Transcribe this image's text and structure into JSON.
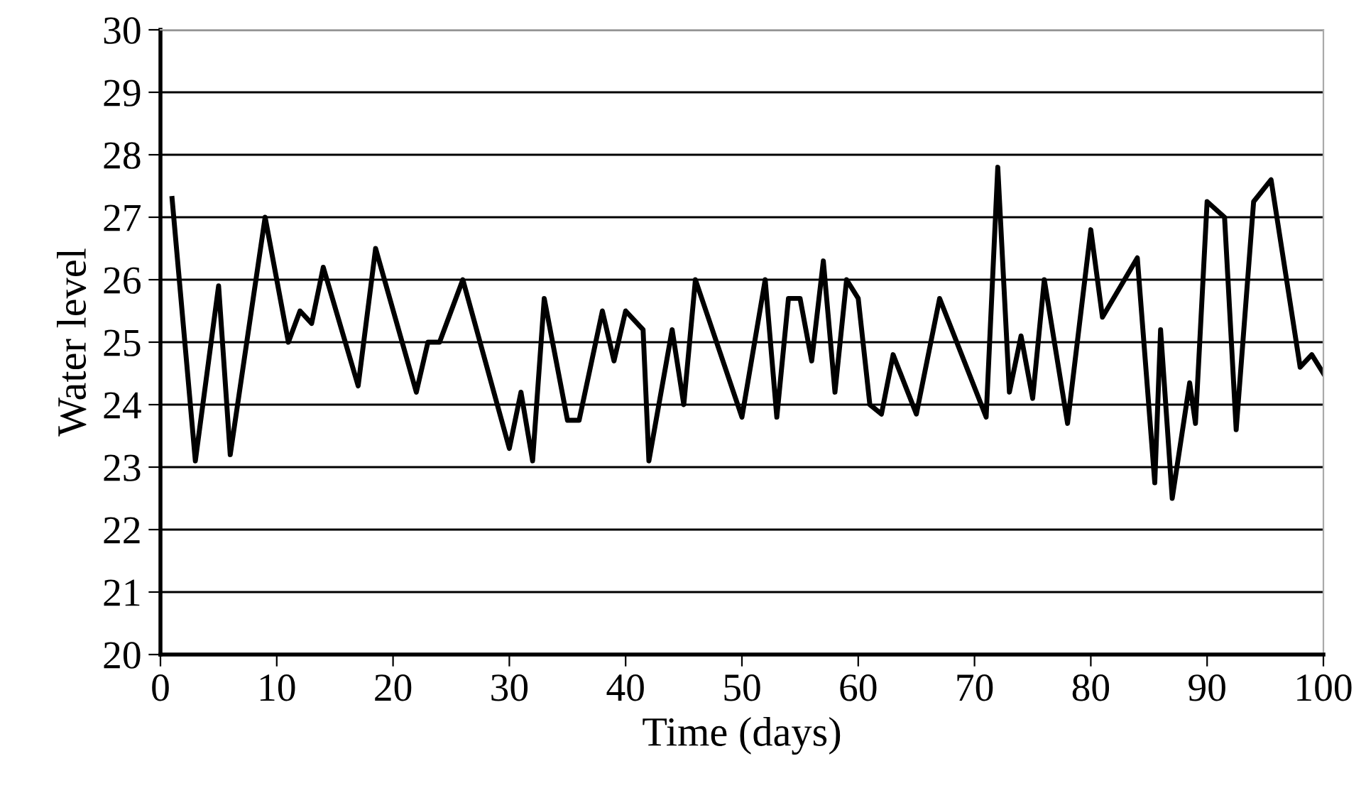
{
  "chart_data": {
    "type": "line",
    "xlabel": "Time (days)",
    "ylabel": "Water level",
    "xlim": [
      0,
      100
    ],
    "xticks": [
      0,
      10,
      20,
      30,
      40,
      50,
      60,
      70,
      80,
      90,
      100
    ],
    "ylim": [
      20,
      30
    ],
    "yticks": [
      20,
      21,
      22,
      23,
      24,
      25,
      26,
      27,
      28,
      29,
      30
    ],
    "grid": "y",
    "marker": "none",
    "line_style": "solid",
    "series": [
      {
        "color": "#000000",
        "x": [
          1,
          3,
          5,
          6,
          9,
          11,
          12,
          13,
          14,
          17,
          18.5,
          22,
          23,
          24,
          26,
          30,
          31,
          32,
          33,
          35,
          36,
          38,
          39,
          40,
          41.5,
          42,
          44,
          45,
          46,
          50,
          52,
          53,
          54,
          55,
          56,
          57,
          58,
          59,
          60,
          61,
          62,
          63,
          65,
          67,
          71,
          72,
          73,
          74,
          75,
          76,
          78,
          80,
          81,
          84,
          85.5,
          86,
          87,
          88.5,
          89,
          90,
          91.5,
          92.5,
          94,
          95.5,
          98,
          99,
          100
        ],
        "values": [
          27.3,
          23.1,
          25.9,
          23.2,
          27.0,
          25.0,
          25.5,
          25.3,
          26.2,
          24.3,
          26.5,
          24.2,
          25.0,
          25.0,
          26.0,
          23.3,
          24.2,
          23.1,
          25.7,
          23.75,
          23.75,
          25.5,
          24.7,
          25.5,
          25.2,
          23.1,
          25.2,
          24.0,
          26.0,
          23.8,
          26.0,
          23.8,
          25.7,
          25.7,
          24.7,
          26.3,
          24.2,
          26.0,
          25.7,
          24.0,
          23.85,
          24.8,
          23.85,
          25.7,
          23.8,
          27.8,
          24.2,
          25.1,
          24.1,
          26.0,
          23.7,
          26.8,
          25.4,
          26.35,
          22.75,
          25.2,
          22.5,
          24.35,
          23.7,
          27.25,
          27.0,
          23.6,
          27.25,
          27.6,
          24.6,
          24.8,
          24.5
        ]
      }
    ]
  }
}
